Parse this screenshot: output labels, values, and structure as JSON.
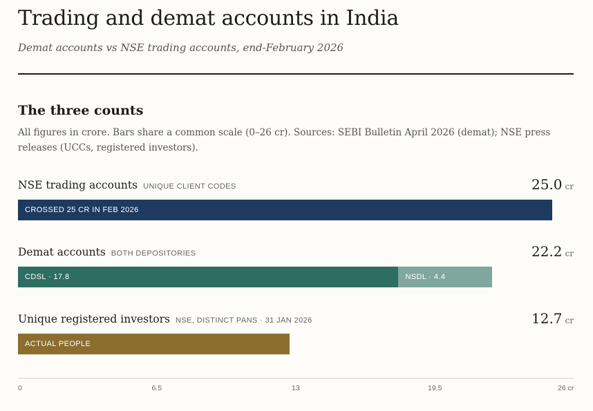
{
  "header": {
    "title": "Trading and demat accounts in India",
    "subtitle": "Demat accounts vs NSE trading accounts, end-February 2026"
  },
  "section": {
    "title": "The three counts",
    "note": "All figures in crore. Bars share a common scale (0–26 cr). Sources: SEBI Bulletin April 2026 (demat); NSE press releases (UCCs, registered investors)."
  },
  "chart_data": {
    "type": "bar",
    "orientation": "horizontal",
    "unit": "cr",
    "xlim": [
      0,
      26
    ],
    "ticks": [
      "0",
      "6.5",
      "13",
      "19.5",
      "26 cr"
    ],
    "tick_values": [
      0,
      6.5,
      13,
      19.5,
      26
    ],
    "rows": [
      {
        "label": "NSE trading accounts",
        "tag": "UNIQUE CLIENT CODES",
        "value": 25.0,
        "value_label": "25.0",
        "segments": [
          {
            "label": "CROSSED 25 CR IN FEB 2026",
            "value": 25.0,
            "color": "#1f3a60"
          }
        ]
      },
      {
        "label": "Demat accounts",
        "tag": "BOTH DEPOSITORIES",
        "value": 22.2,
        "value_label": "22.2",
        "segments": [
          {
            "label": "CDSL · 17.8",
            "value": 17.8,
            "color": "#2e6e62"
          },
          {
            "label": "NSDL · 4.4",
            "value": 4.4,
            "color": "#7fa79e"
          }
        ]
      },
      {
        "label": "Unique registered investors",
        "tag": "NSE, DISTINCT PANS · 31 JAN 2026",
        "value": 12.7,
        "value_label": "12.7",
        "segments": [
          {
            "label": "ACTUAL PEOPLE",
            "value": 12.7,
            "color": "#8b6d2e"
          }
        ]
      }
    ]
  }
}
